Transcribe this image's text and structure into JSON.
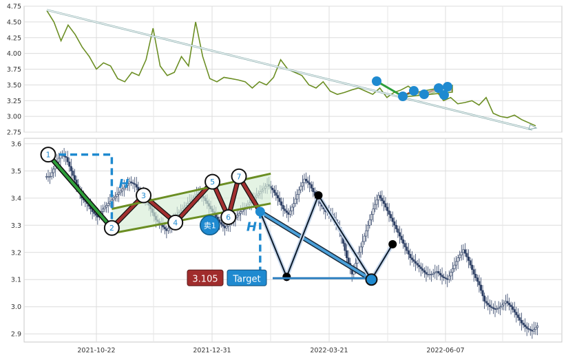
{
  "chart_data": [
    {
      "type": "line",
      "panel": "overview",
      "ylim": [
        2.75,
        4.75
      ],
      "y_ticks": [
        "2.75",
        "3.00",
        "3.25",
        "3.50",
        "3.75",
        "4.00",
        "4.25",
        "4.50",
        "4.75"
      ],
      "x_ticks": [
        "2021-10-22",
        "2021-12-31",
        "2022-03-21",
        "2022-06-07"
      ],
      "grid": true,
      "colors": {
        "line": "#6b8e23",
        "trend": "#7fa7a7",
        "marker": "#1f8ad0",
        "green": "#2e9e3a",
        "red": "#a23030"
      },
      "series": [
        {
          "x": [
            "2021-09-01",
            "2021-09-05",
            "2021-09-10",
            "2021-09-15",
            "2021-09-20",
            "2021-09-25",
            "2021-09-30",
            "2021-10-05",
            "2021-10-10",
            "2021-10-15",
            "2021-10-20",
            "2021-10-25",
            "2021-10-30",
            "2021-11-04",
            "2021-11-09",
            "2021-11-14",
            "2021-11-19",
            "2021-11-24",
            "2021-11-29",
            "2021-12-04",
            "2021-12-09",
            "2021-12-14",
            "2021-12-19",
            "2021-12-24",
            "2021-12-29",
            "2022-01-03",
            "2022-01-08",
            "2022-01-13",
            "2022-01-18",
            "2022-01-23",
            "2022-01-28",
            "2022-02-02",
            "2022-02-07",
            "2022-02-12",
            "2022-02-17",
            "2022-02-22",
            "2022-02-27",
            "2022-03-04",
            "2022-03-09",
            "2022-03-14",
            "2022-03-19",
            "2022-03-24",
            "2022-03-29",
            "2022-04-03",
            "2022-04-08",
            "2022-04-13",
            "2022-04-18",
            "2022-04-23",
            "2022-04-28",
            "2022-05-03",
            "2022-05-08",
            "2022-05-13",
            "2022-05-18",
            "2022-05-23",
            "2022-05-28",
            "2022-06-02",
            "2022-06-07",
            "2022-06-12",
            "2022-06-17",
            "2022-06-22",
            "2022-06-27",
            "2022-07-02",
            "2022-07-07",
            "2022-07-12",
            "2022-07-17",
            "2022-07-22",
            "2022-07-27",
            "2022-08-01",
            "2022-08-06",
            "2022-08-11"
          ],
          "values": [
            4.68,
            4.5,
            4.2,
            4.45,
            4.3,
            4.1,
            3.95,
            3.75,
            3.85,
            3.8,
            3.6,
            3.55,
            3.7,
            3.65,
            3.9,
            4.4,
            3.8,
            3.65,
            3.7,
            3.95,
            3.8,
            4.5,
            3.95,
            3.6,
            3.55,
            3.62,
            3.6,
            3.58,
            3.55,
            3.45,
            3.55,
            3.5,
            3.62,
            3.9,
            3.75,
            3.7,
            3.65,
            3.5,
            3.45,
            3.55,
            3.4,
            3.35,
            3.38,
            3.42,
            3.45,
            3.4,
            3.35,
            3.45,
            3.3,
            3.38,
            3.42,
            3.48,
            3.4,
            3.3,
            3.35,
            3.4,
            3.25,
            3.3,
            3.2,
            3.22,
            3.25,
            3.18,
            3.3,
            3.05,
            3.0,
            2.98,
            3.02,
            2.95,
            2.9,
            2.85
          ]
        }
      ]
    },
    {
      "type": "candlestick",
      "panel": "main",
      "ylim": [
        2.87,
        3.62
      ],
      "y_ticks": [
        "2.9",
        "3.0",
        "3.1",
        "3.2",
        "3.3",
        "3.4",
        "3.5",
        "3.6"
      ],
      "x_ticks": [
        "2021-10-22",
        "2021-12-31",
        "2022-03-21",
        "2022-06-07"
      ],
      "grid": true,
      "close": [
        3.48,
        3.52,
        3.56,
        3.55,
        3.5,
        3.45,
        3.4,
        3.38,
        3.35,
        3.33,
        3.36,
        3.38,
        3.4,
        3.42,
        3.44,
        3.46,
        3.45,
        3.42,
        3.4,
        3.36,
        3.32,
        3.3,
        3.28,
        3.31,
        3.34,
        3.36,
        3.38,
        3.4,
        3.42,
        3.4,
        3.37,
        3.34,
        3.31,
        3.29,
        3.31,
        3.33,
        3.35,
        3.37,
        3.39,
        3.41,
        3.43,
        3.45,
        3.43,
        3.4,
        3.36,
        3.34,
        3.38,
        3.43,
        3.47,
        3.45,
        3.41,
        3.38,
        3.35,
        3.34,
        3.31,
        3.26,
        3.18,
        3.12,
        3.18,
        3.24,
        3.3,
        3.36,
        3.41,
        3.38,
        3.34,
        3.3,
        3.26,
        3.22,
        3.18,
        3.16,
        3.14,
        3.12,
        3.12,
        3.13,
        3.11,
        3.1,
        3.14,
        3.18,
        3.21,
        3.17,
        3.12,
        3.08,
        3.02,
        3.0,
        2.99,
        3.0,
        3.02,
        3.0,
        2.97,
        2.94,
        2.92,
        2.91,
        2.93
      ],
      "patterns": [
        {
          "kind": "descending-leg",
          "points": [
            [
              0,
              3.56
            ],
            [
              12,
              3.29
            ]
          ],
          "color": "#2e9e3a"
        },
        {
          "kind": "wedge-zigzag",
          "points": [
            [
              12,
              3.29
            ],
            [
              18,
              3.41
            ],
            [
              24,
              3.31
            ],
            [
              31,
              3.46
            ],
            [
              34,
              3.33
            ],
            [
              36,
              3.48
            ],
            [
              40,
              3.35
            ]
          ],
          "color": "#a23030"
        },
        {
          "kind": "channel-upper",
          "points": [
            [
              12,
              3.36
            ],
            [
              42,
              3.49
            ]
          ],
          "color": "#6b8e23"
        },
        {
          "kind": "channel-lower",
          "points": [
            [
              12,
              3.27
            ],
            [
              42,
              3.38
            ]
          ],
          "color": "#6b8e23"
        },
        {
          "kind": "target-leg",
          "points": [
            [
              40,
              3.35
            ],
            [
              61,
              3.1
            ]
          ],
          "color": "#4a9fd8"
        },
        {
          "kind": "zigzag",
          "points": [
            [
              40,
              3.35
            ],
            [
              45,
              3.11
            ],
            [
              51,
              3.41
            ],
            [
              61,
              3.1
            ],
            [
              65,
              3.23
            ]
          ],
          "color": "#0a1a2a"
        }
      ],
      "pattern_labels": [
        "1",
        "2",
        "3",
        "4",
        "5",
        "6",
        "7"
      ],
      "height_label": "H",
      "sell_label": "卖1",
      "price_label": "3.105",
      "target_label": "Target",
      "target_price": 3.105
    }
  ]
}
